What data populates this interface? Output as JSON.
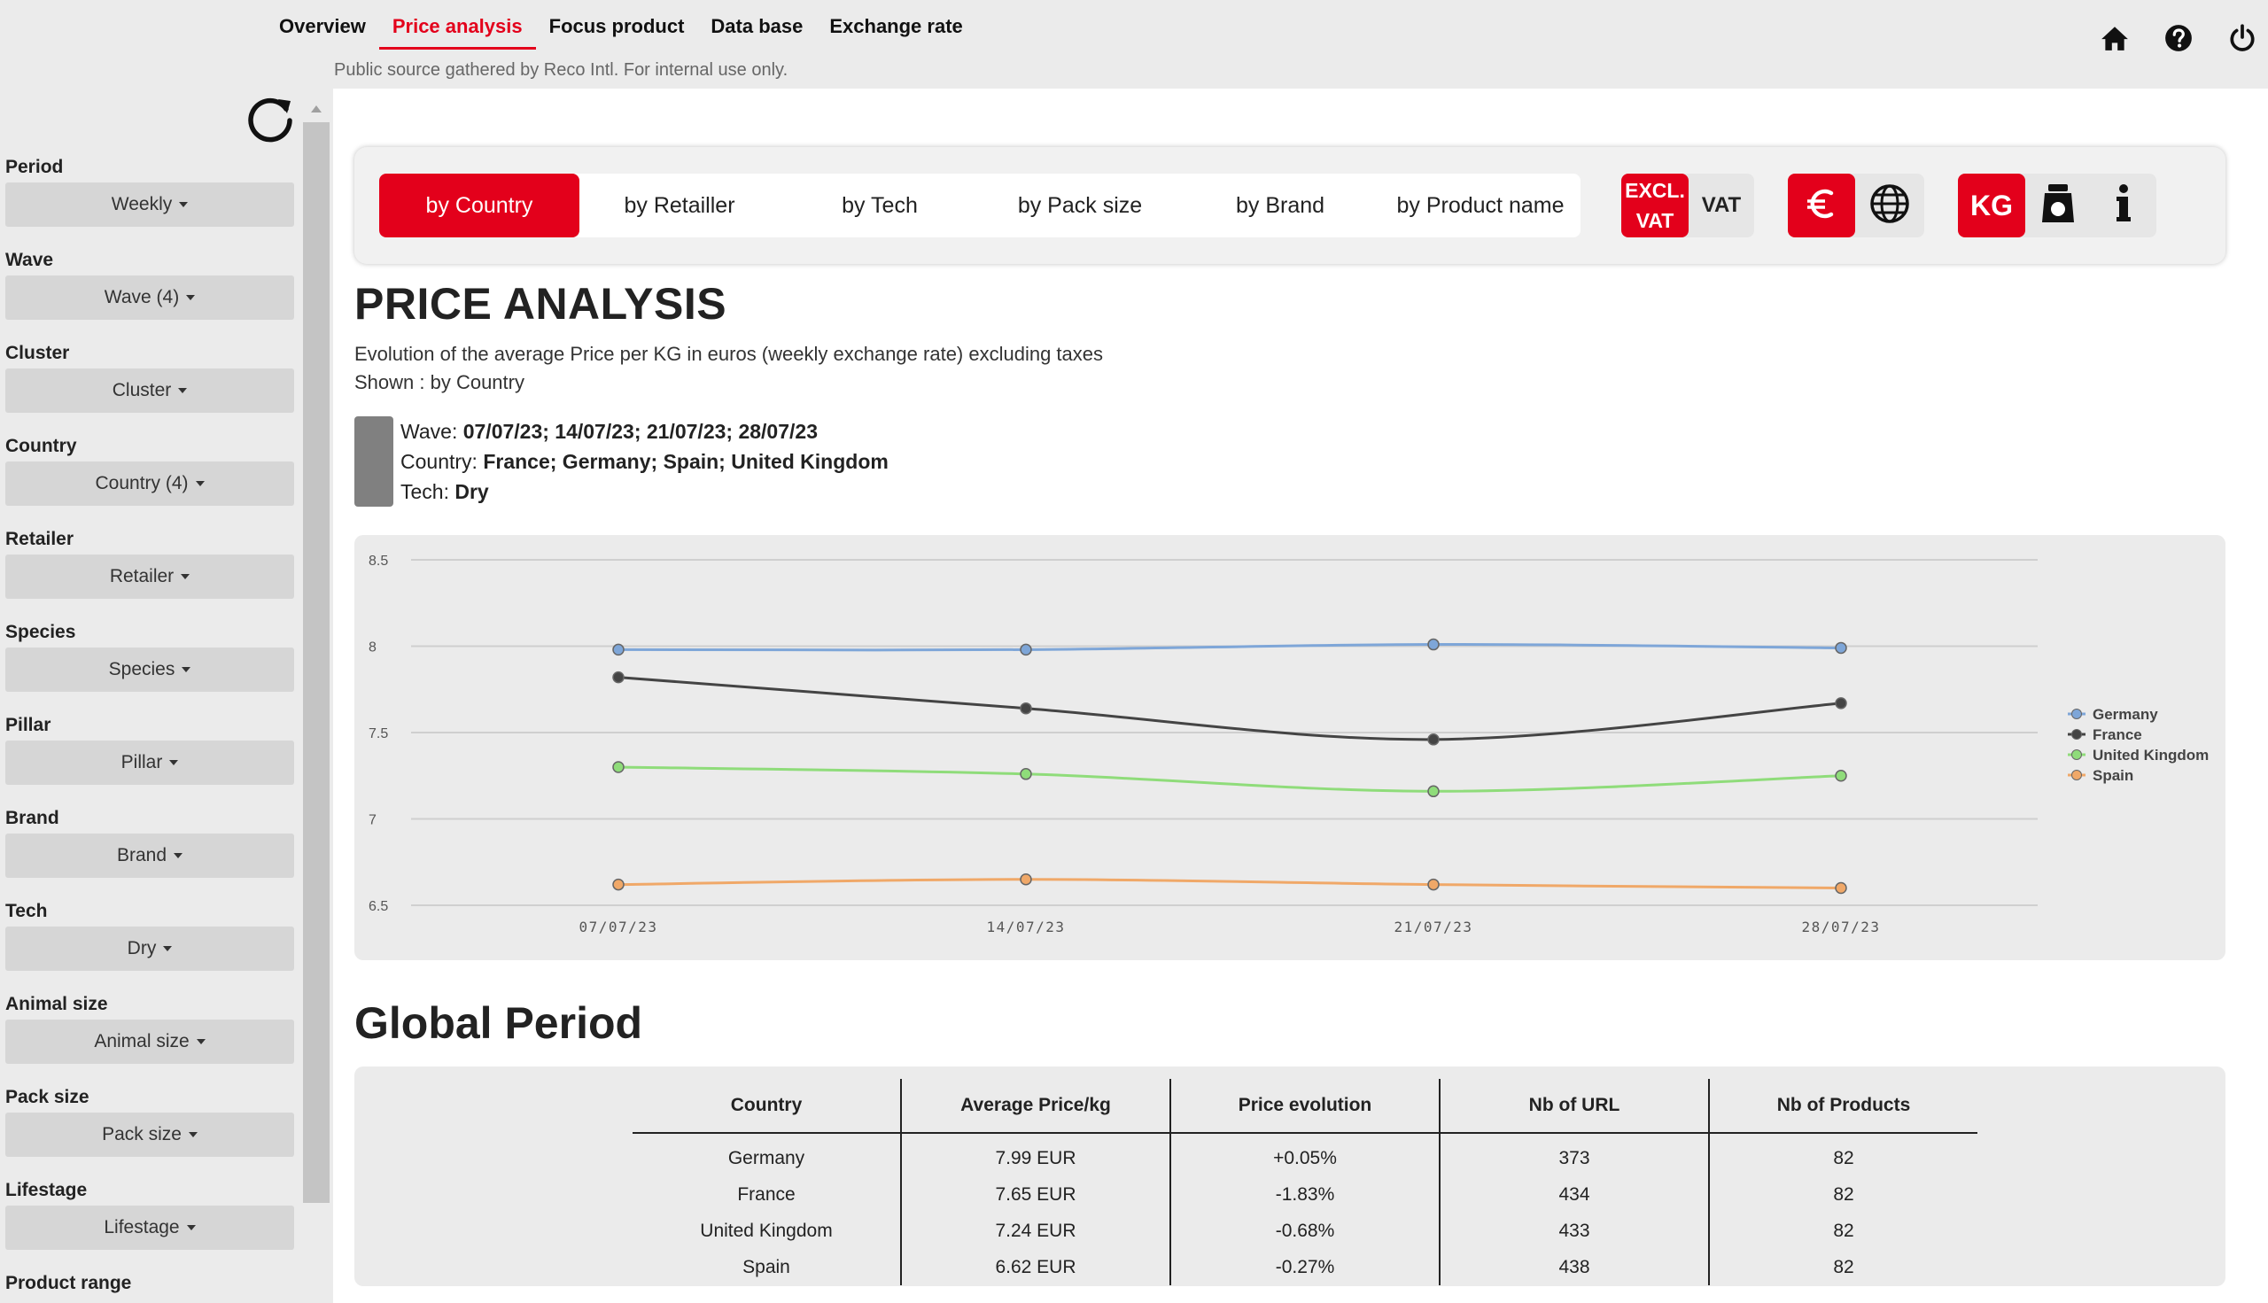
{
  "nav": {
    "tabs": [
      "Overview",
      "Price analysis",
      "Focus product",
      "Data base",
      "Exchange rate"
    ],
    "active": "Price analysis",
    "subtitle": "Public source gathered by Reco Intl. For internal use only."
  },
  "top_icons": [
    "home-icon",
    "help-icon",
    "power-icon"
  ],
  "sidebar": {
    "filters": [
      {
        "label": "Period",
        "value": "Weekly"
      },
      {
        "label": "Wave",
        "value": "Wave (4)"
      },
      {
        "label": "Cluster",
        "value": "Cluster"
      },
      {
        "label": "Country",
        "value": "Country (4)"
      },
      {
        "label": "Retailer",
        "value": "Retailer"
      },
      {
        "label": "Species",
        "value": "Species"
      },
      {
        "label": "Pillar",
        "value": "Pillar"
      },
      {
        "label": "Brand",
        "value": "Brand"
      },
      {
        "label": "Tech",
        "value": "Dry"
      },
      {
        "label": "Animal size",
        "value": "Animal size"
      },
      {
        "label": "Pack size",
        "value": "Pack size"
      },
      {
        "label": "Lifestage",
        "value": "Lifestage"
      }
    ],
    "last_label": "Product range"
  },
  "toolbar": {
    "tabs": [
      "by Country",
      "by Retailler",
      "by Tech",
      "by Pack size",
      "by Brand",
      "by Product name"
    ],
    "active": "by Country",
    "vat": {
      "excl_line1": "EXCL.",
      "excl_line2": "VAT",
      "vat": "VAT"
    },
    "currency_icons": [
      "euro-icon",
      "globe-icon"
    ],
    "unit": {
      "kg": "KG",
      "icons": [
        "pack-icon",
        "info-icon"
      ]
    }
  },
  "page": {
    "title": "PRICE ANALYSIS",
    "description": "Evolution of the average Price per KG in euros (weekly exchange rate) excluding taxes",
    "shown": "Shown : by Country",
    "info": {
      "wave_label": "Wave: ",
      "wave_value": "07/07/23; 14/07/23; 21/07/23; 28/07/23",
      "country_label": "Country: ",
      "country_value": "France; Germany; Spain; United Kingdom",
      "tech_label": "Tech: ",
      "tech_value": "Dry"
    }
  },
  "chart_data": {
    "type": "line",
    "title": "",
    "xlabel": "",
    "ylabel": "",
    "categories": [
      "07/07/23",
      "14/07/23",
      "21/07/23",
      "28/07/23"
    ],
    "ylim": [
      6.5,
      8.5
    ],
    "yticks": [
      "8.5",
      "8",
      "7.5",
      "7",
      "6.5"
    ],
    "grid": true,
    "legend": "right",
    "series": [
      {
        "name": "Germany",
        "color": "#7ea6d8",
        "values": [
          7.98,
          7.98,
          8.01,
          7.99
        ]
      },
      {
        "name": "France",
        "color": "#444444",
        "values": [
          7.82,
          7.64,
          7.46,
          7.67
        ]
      },
      {
        "name": "United Kingdom",
        "color": "#8fdc7a",
        "values": [
          7.3,
          7.26,
          7.16,
          7.25
        ]
      },
      {
        "name": "Spain",
        "color": "#f0a868",
        "values": [
          6.62,
          6.65,
          6.62,
          6.6
        ]
      }
    ]
  },
  "global_period": {
    "title": "Global Period",
    "headers": [
      "Country",
      "Average Price/kg",
      "Price evolution",
      "Nb of URL",
      "Nb of Products"
    ],
    "rows": [
      [
        "Germany",
        "7.99 EUR",
        "+0.05%",
        "373",
        "82"
      ],
      [
        "France",
        "7.65 EUR",
        "-1.83%",
        "434",
        "82"
      ],
      [
        "United Kingdom",
        "7.24 EUR",
        "-0.68%",
        "433",
        "82"
      ],
      [
        "Spain",
        "6.62 EUR",
        "-0.27%",
        "438",
        "82"
      ]
    ]
  },
  "colors": {
    "accent": "#e3001b"
  }
}
